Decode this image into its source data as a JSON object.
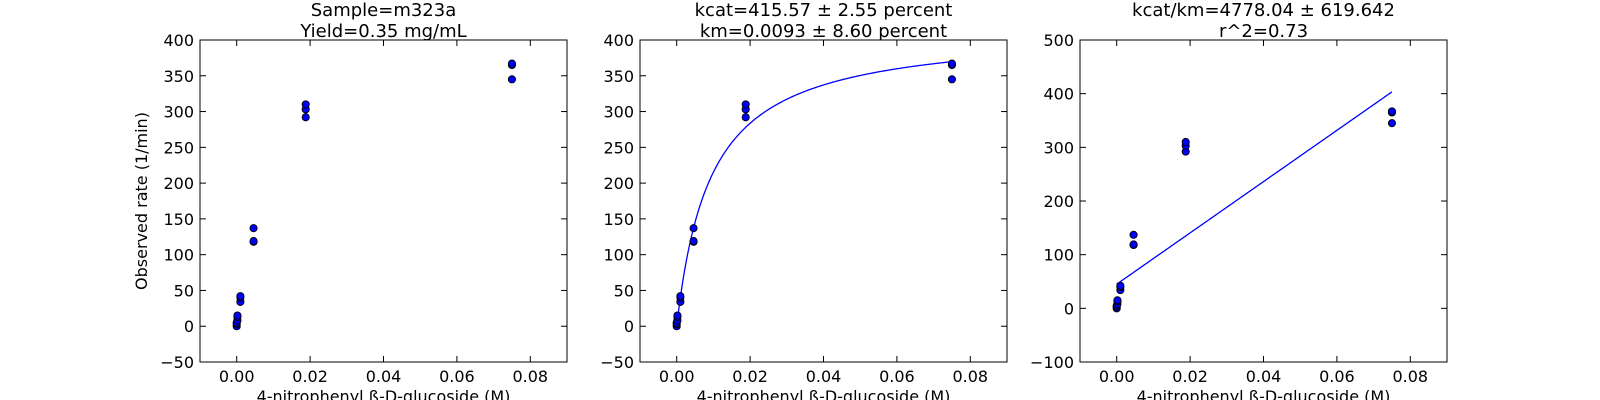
{
  "figure": {
    "background": "#ffffff",
    "marker_color": "#0000ff",
    "line_color": "#0000ff"
  },
  "chart_data": [
    {
      "type": "scatter",
      "title_lines": [
        "Sample=m323a",
        "Yield=0.35 mg/mL"
      ],
      "xlabel": "4-nitrophenyl ß-D-glucoside (M)",
      "ylabel": "Observed rate (1/min)",
      "xlim": [
        -0.01,
        0.09
      ],
      "ylim": [
        -50,
        400
      ],
      "xticks": [
        "0.00",
        "0.02",
        "0.04",
        "0.06",
        "0.08"
      ],
      "yticks": [
        "−50",
        "0",
        "50",
        "100",
        "150",
        "200",
        "250",
        "300",
        "350",
        "400"
      ],
      "grid": false,
      "points": [
        [
          0.0,
          0
        ],
        [
          0.0,
          3
        ],
        [
          0.0,
          5
        ],
        [
          0.0002,
          8
        ],
        [
          0.0002,
          13
        ],
        [
          0.0002,
          15
        ],
        [
          0.001,
          34
        ],
        [
          0.001,
          40
        ],
        [
          0.001,
          42
        ],
        [
          0.0046,
          118
        ],
        [
          0.0046,
          119
        ],
        [
          0.0046,
          137
        ],
        [
          0.0188,
          292
        ],
        [
          0.0188,
          303
        ],
        [
          0.0188,
          310
        ],
        [
          0.075,
          345
        ],
        [
          0.075,
          365
        ],
        [
          0.075,
          367
        ]
      ]
    },
    {
      "type": "scatter",
      "title_lines": [
        "kcat=415.57 ± 2.55 percent",
        "km=0.0093 ± 8.60 percent"
      ],
      "xlabel": "4-nitrophenyl ß-D-glucoside (M)",
      "ylabel": "",
      "xlim": [
        -0.01,
        0.09
      ],
      "ylim": [
        -50,
        400
      ],
      "xticks": [
        "0.00",
        "0.02",
        "0.04",
        "0.06",
        "0.08"
      ],
      "yticks": [
        "−50",
        "0",
        "50",
        "100",
        "150",
        "200",
        "250",
        "300",
        "350",
        "400"
      ],
      "grid": false,
      "points": [
        [
          0.0,
          0
        ],
        [
          0.0,
          3
        ],
        [
          0.0,
          5
        ],
        [
          0.0002,
          8
        ],
        [
          0.0002,
          13
        ],
        [
          0.0002,
          15
        ],
        [
          0.001,
          34
        ],
        [
          0.001,
          40
        ],
        [
          0.001,
          42
        ],
        [
          0.0046,
          118
        ],
        [
          0.0046,
          119
        ],
        [
          0.0046,
          137
        ],
        [
          0.0188,
          292
        ],
        [
          0.0188,
          303
        ],
        [
          0.0188,
          310
        ],
        [
          0.075,
          345
        ],
        [
          0.075,
          365
        ],
        [
          0.075,
          367
        ]
      ],
      "fit": {
        "kind": "michaelis-menten",
        "kcat": 415.57,
        "km": 0.0093,
        "x_range": [
          0.0,
          0.075
        ]
      }
    },
    {
      "type": "scatter",
      "title_lines": [
        "kcat/km=4778.04 ± 619.642",
        "r^2=0.73"
      ],
      "xlabel": "4-nitrophenyl ß-D-glucoside (M)",
      "ylabel": "",
      "xlim": [
        -0.01,
        0.09
      ],
      "ylim": [
        -100,
        500
      ],
      "xticks": [
        "0.00",
        "0.02",
        "0.04",
        "0.06",
        "0.08"
      ],
      "yticks": [
        "−100",
        "0",
        "100",
        "200",
        "300",
        "400",
        "500"
      ],
      "grid": false,
      "points": [
        [
          0.0,
          0
        ],
        [
          0.0,
          3
        ],
        [
          0.0,
          5
        ],
        [
          0.0002,
          8
        ],
        [
          0.0002,
          13
        ],
        [
          0.0002,
          15
        ],
        [
          0.001,
          34
        ],
        [
          0.001,
          40
        ],
        [
          0.001,
          42
        ],
        [
          0.0046,
          118
        ],
        [
          0.0046,
          119
        ],
        [
          0.0046,
          137
        ],
        [
          0.0188,
          292
        ],
        [
          0.0188,
          303
        ],
        [
          0.0188,
          310
        ],
        [
          0.075,
          345
        ],
        [
          0.075,
          365
        ],
        [
          0.075,
          367
        ]
      ],
      "fit": {
        "kind": "linear",
        "slope": 4778.04,
        "intercept": 45,
        "x_range": [
          0.0,
          0.075
        ]
      }
    }
  ]
}
